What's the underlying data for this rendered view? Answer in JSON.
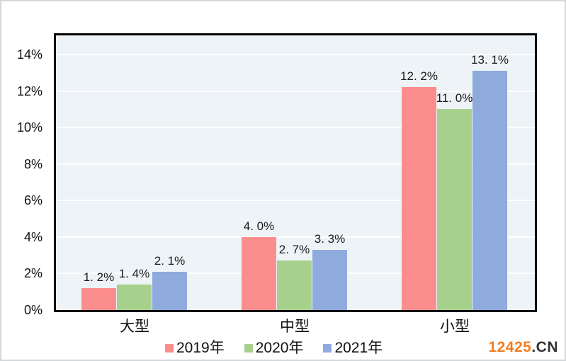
{
  "page": {
    "background_color": "#ffffff",
    "outer_border_color": "#d5d7d9"
  },
  "watermark": {
    "prefix": "12425",
    "suffix": ".CN",
    "prefix_color": "#f57d1f",
    "suffix_color": "#333333"
  },
  "chart_data": {
    "type": "bar",
    "title": "",
    "xlabel": "",
    "ylabel": "",
    "categories": [
      "大型",
      "中型",
      "小型"
    ],
    "series": [
      {
        "name": "2019年",
        "color": "#fc8d8d",
        "values": [
          1.2,
          4.0,
          12.2
        ],
        "labels": [
          "1. 2%",
          "4. 0%",
          "12. 2%"
        ]
      },
      {
        "name": "2020年",
        "color": "#a8d08d",
        "values": [
          1.4,
          2.7,
          11.0
        ],
        "labels": [
          "1. 4%",
          "2. 7%",
          "11. 0%"
        ]
      },
      {
        "name": "2021年",
        "color": "#8faadc",
        "values": [
          2.1,
          3.3,
          13.1
        ],
        "labels": [
          "2. 1%",
          "3. 3%",
          "13. 1%"
        ]
      }
    ],
    "y_axis": {
      "min": 0,
      "max": 14,
      "step": 2,
      "tick_suffix": "%",
      "ticks": [
        "0%",
        "2%",
        "4%",
        "6%",
        "8%",
        "10%",
        "12%",
        "14%"
      ]
    },
    "grid": true,
    "gridline_color": "#ffffff",
    "plot_background": "#edf3f7",
    "plot_border_color": "#000000",
    "legend_position": "bottom",
    "data_labels": "outside-end"
  }
}
